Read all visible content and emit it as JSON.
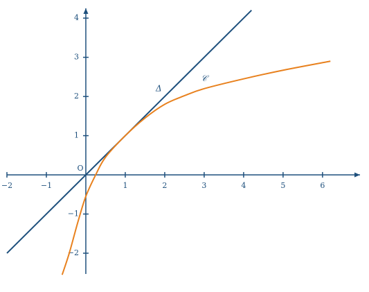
{
  "chart_data": {
    "type": "line",
    "origin_label": "O",
    "axis_color": "#1d4f7c",
    "xlim": [
      -2,
      6.95
    ],
    "ylim": [
      -2.53,
      4.25
    ],
    "xticks": [
      {
        "value": -2,
        "label": "−2"
      },
      {
        "value": -1,
        "label": "−1"
      },
      1,
      2,
      3,
      4,
      5,
      6
    ],
    "yticks": [
      {
        "value": -2,
        "label": "−2"
      },
      {
        "value": -1,
        "label": "−1"
      },
      1,
      2,
      3,
      4
    ],
    "series": [
      {
        "name": "Δ",
        "color": "#1d4f7c",
        "x": [
          -2,
          4.2
        ],
        "values": [
          -2,
          4.2
        ]
      },
      {
        "name": "𝒞",
        "color": "#e8811e",
        "x": [
          -0.6,
          -0.42,
          -0.2,
          0,
          0.25,
          0.5,
          1,
          1.5,
          2,
          2.5,
          3,
          4,
          5,
          6.2
        ],
        "values": [
          -2.55,
          -2,
          -1.2,
          -0.55,
          0,
          0.45,
          1,
          1.45,
          1.8,
          2.02,
          2.2,
          2.45,
          2.67,
          2.9
        ]
      }
    ]
  }
}
